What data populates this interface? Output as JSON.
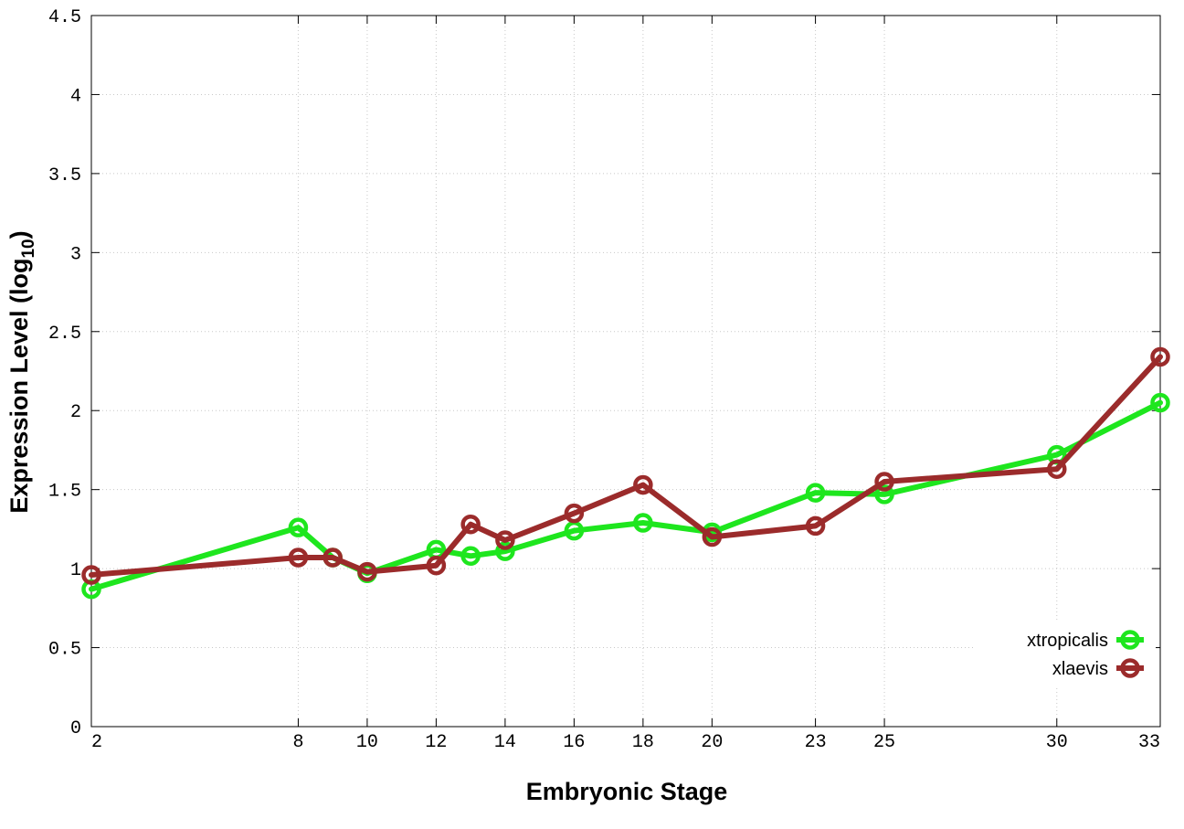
{
  "chart_data": {
    "type": "line",
    "title": "",
    "xlabel": "Embryonic Stage",
    "ylabel_main": "Expression Level (log",
    "ylabel_sub": "10",
    "ylabel_close": ")",
    "xlim": [
      2,
      33
    ],
    "ylim": [
      0,
      4.5
    ],
    "x_ticks": [
      2,
      8,
      10,
      12,
      14,
      16,
      18,
      20,
      23,
      25,
      30,
      33
    ],
    "y_ticks": [
      0,
      0.5,
      1,
      1.5,
      2,
      2.5,
      3,
      3.5,
      4,
      4.5
    ],
    "x_tick_labels": [
      "2",
      "8",
      "10",
      "12",
      "14",
      "16",
      "18",
      "20",
      "23",
      "25",
      "30",
      "33"
    ],
    "y_tick_labels": [
      "0",
      "0.5",
      "1",
      "1.5",
      "2",
      "2.5",
      "3",
      "3.5",
      "4",
      "4.5"
    ],
    "grid": true,
    "legend_position": "bottom-right",
    "x": [
      2,
      8,
      9,
      10,
      12,
      13,
      14,
      16,
      18,
      20,
      23,
      25,
      30,
      33
    ],
    "series": [
      {
        "name": "xtropicalis",
        "color": "#1ee61e",
        "values": [
          0.87,
          1.26,
          1.07,
          0.97,
          1.12,
          1.08,
          1.11,
          1.24,
          1.29,
          1.23,
          1.48,
          1.47,
          1.72,
          2.05
        ]
      },
      {
        "name": "xlaevis",
        "color": "#9b2b2b",
        "values": [
          0.96,
          1.07,
          1.07,
          0.98,
          1.02,
          1.28,
          1.18,
          1.35,
          1.53,
          1.2,
          1.27,
          1.55,
          1.63,
          2.34
        ]
      }
    ]
  }
}
